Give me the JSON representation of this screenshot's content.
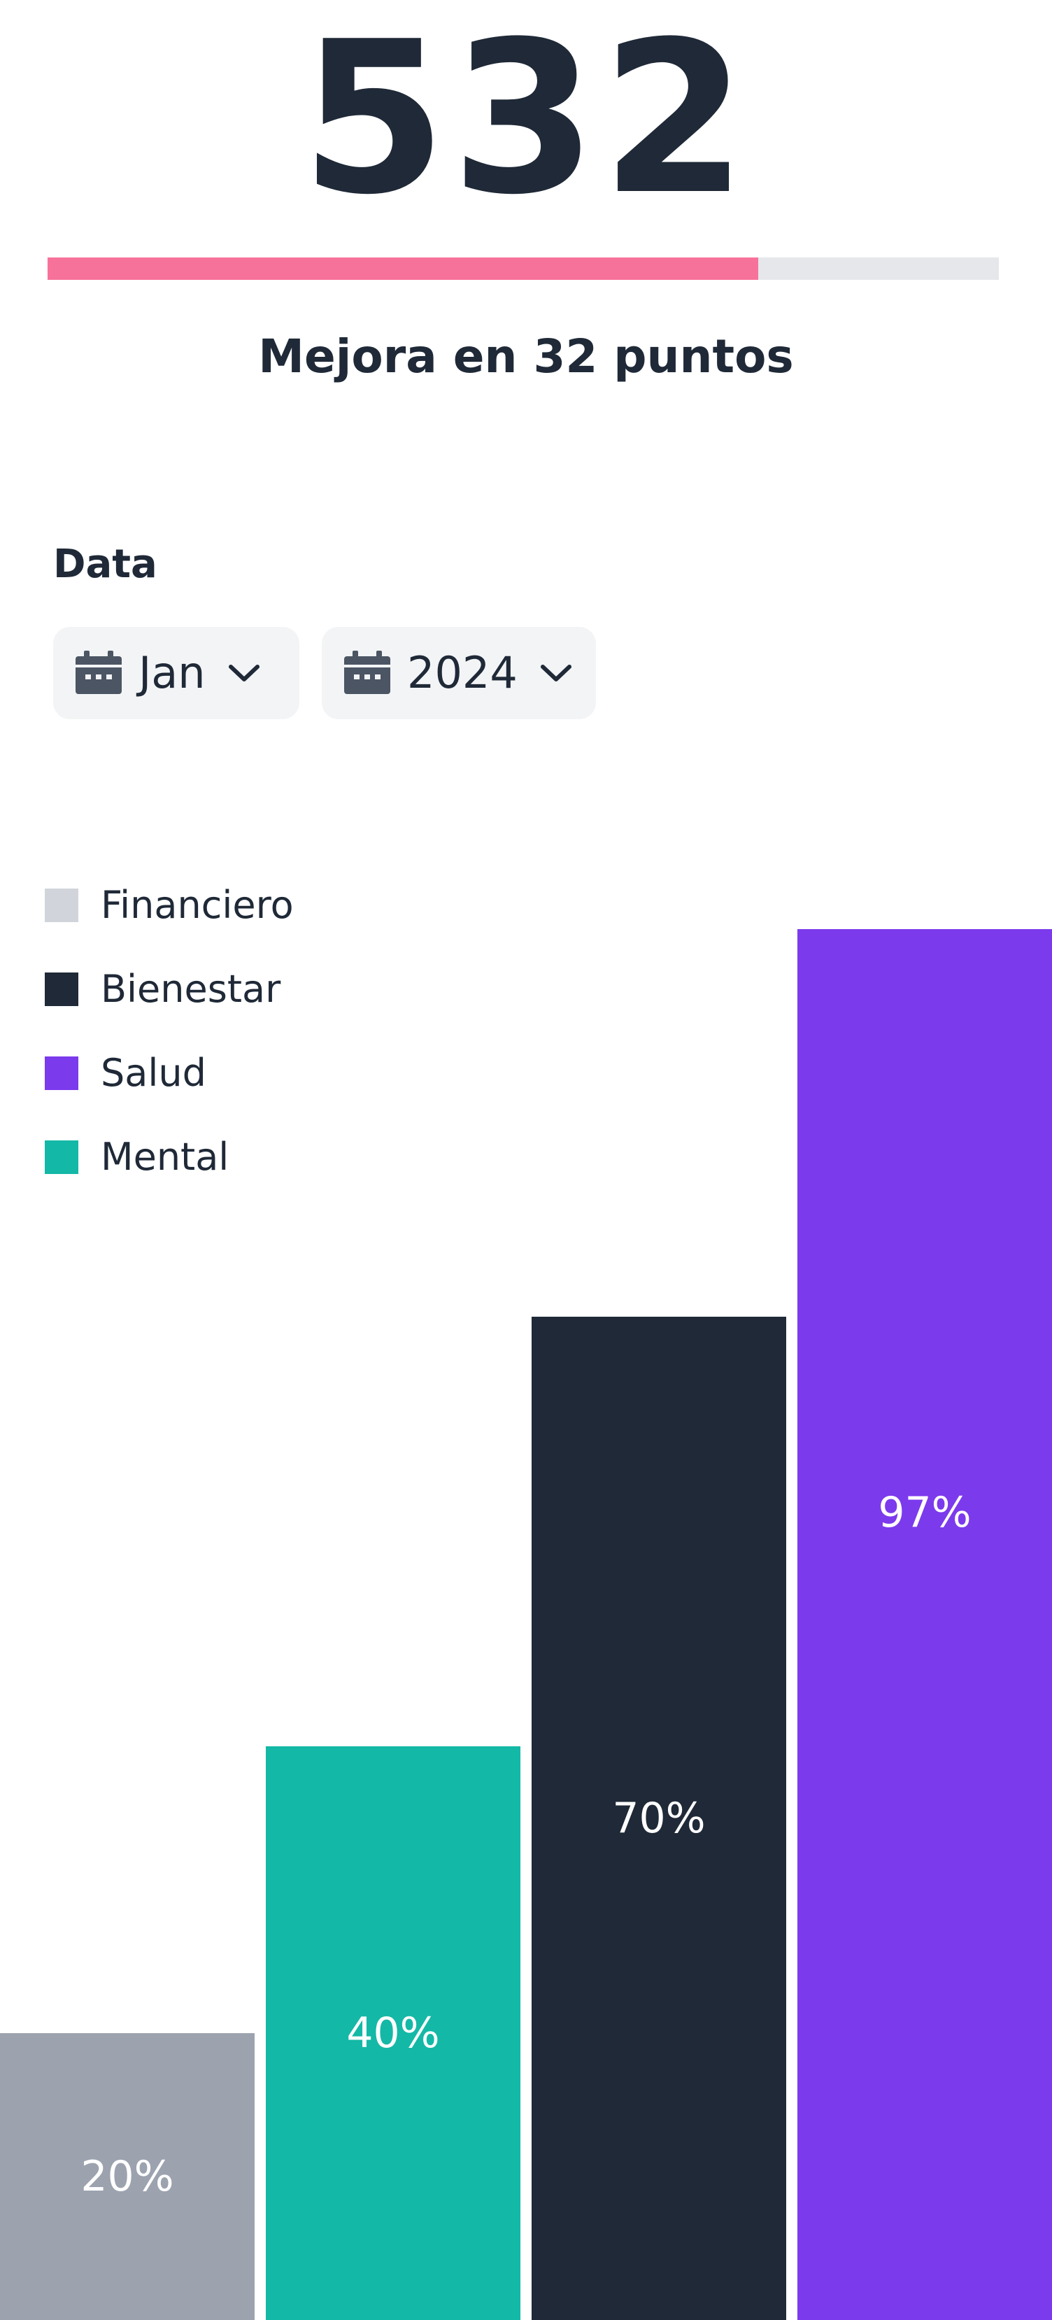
{
  "score": {
    "value": "532",
    "progress_fraction": 0.747,
    "improvement_text": "Mejora en 32 puntos"
  },
  "date_filter": {
    "label": "Data",
    "month": {
      "value": "Jan",
      "icon": "calendar-icon"
    },
    "year": {
      "value": "2024",
      "icon": "calendar-icon"
    }
  },
  "colors": {
    "progress_fill": "#f7729a",
    "progress_track": "#e5e7eb",
    "text": "#1f2937"
  },
  "chart_data": {
    "type": "bar",
    "legend": [
      {
        "name": "Financiero",
        "color": "#d1d5db"
      },
      {
        "name": "Bienestar",
        "color": "#1f2937"
      },
      {
        "name": "Salud",
        "color": "#7c3aed"
      },
      {
        "name": "Mental",
        "color": "#14b8a6"
      }
    ],
    "bars": [
      {
        "series": "Financiero",
        "value": 20,
        "label": "20%",
        "color": "#9ca3af"
      },
      {
        "series": "Mental",
        "value": 40,
        "label": "40%",
        "color": "#14b8a6"
      },
      {
        "series": "Bienestar",
        "value": 70,
        "label": "70%",
        "color": "#1f2937"
      },
      {
        "series": "Salud",
        "value": 97,
        "label": "97%",
        "color": "#7c3aed"
      }
    ],
    "ylim": [
      0,
      100
    ],
    "legend_position": "top-left",
    "grid": false
  }
}
